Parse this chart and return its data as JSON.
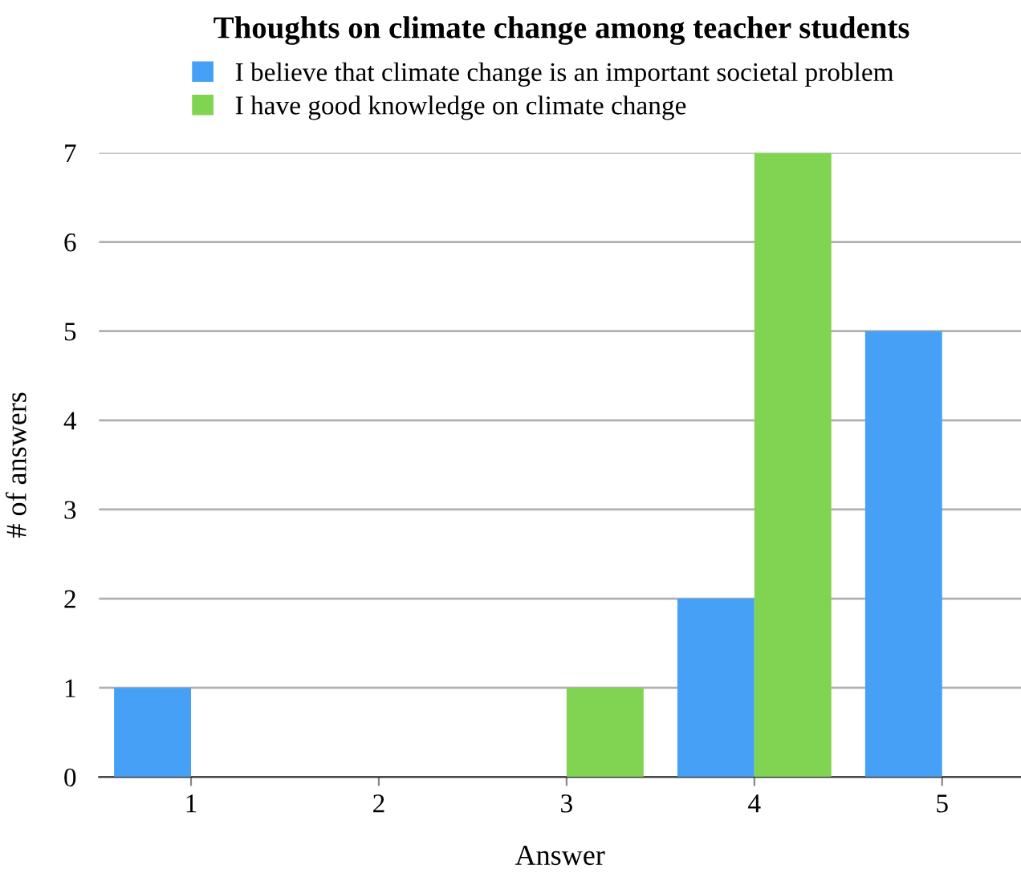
{
  "chart_data": {
    "type": "bar",
    "title": "Thoughts on climate change among teacher students",
    "xlabel": "Answer",
    "ylabel": "# of answers",
    "categories": [
      "1",
      "2",
      "3",
      "4",
      "5"
    ],
    "series": [
      {
        "name": "I believe that climate change is an important societal problem",
        "color": "#46a0f5",
        "values": [
          1,
          0,
          0,
          2,
          5
        ]
      },
      {
        "name": "I have good knowledge on climate change",
        "color": "#80d452",
        "values": [
          0,
          0,
          1,
          7,
          0
        ]
      }
    ],
    "ylim": [
      0,
      7
    ],
    "yticks": [
      0,
      1,
      2,
      3,
      4,
      5,
      6,
      7
    ],
    "grid": "y",
    "legend": "top"
  }
}
